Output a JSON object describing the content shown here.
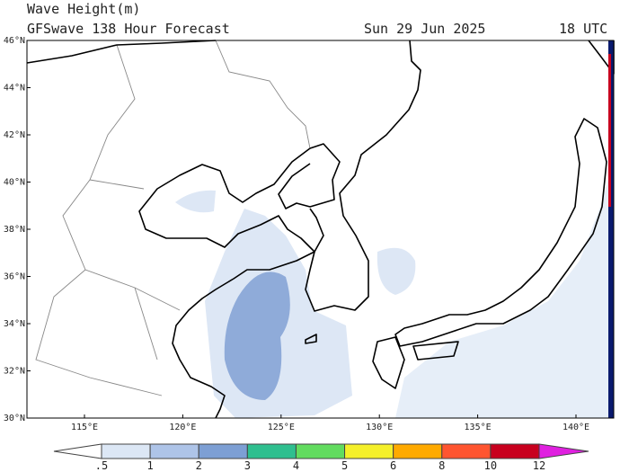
{
  "header": {
    "title": "Wave Height(m)",
    "subtitle": "GFSwave 138 Hour Forecast",
    "date": "Sun 29 Jun 2025",
    "time": "18 UTC"
  },
  "map": {
    "lat_labels": [
      "46°N",
      "44°N",
      "42°N",
      "40°N",
      "38°N",
      "36°N",
      "34°N",
      "32°N",
      "30°N"
    ],
    "lon_labels": [
      "115°E",
      "120°E",
      "125°E",
      "130°E",
      "135°E",
      "140°E"
    ]
  },
  "colorbar": {
    "ticks": [
      {
        "value": 0.5,
        "label": ".5"
      },
      1,
      2,
      3,
      4,
      5,
      6,
      8,
      10,
      12
    ],
    "colors": [
      "#ffffff",
      "#dce7f5",
      "#aec4e8",
      "#7d9fd4",
      "#2fbf8f",
      "#62dc5f",
      "#f5f02a",
      "#ffaa00",
      "#ff5530",
      "#c8001e",
      "#e020e0"
    ]
  }
}
